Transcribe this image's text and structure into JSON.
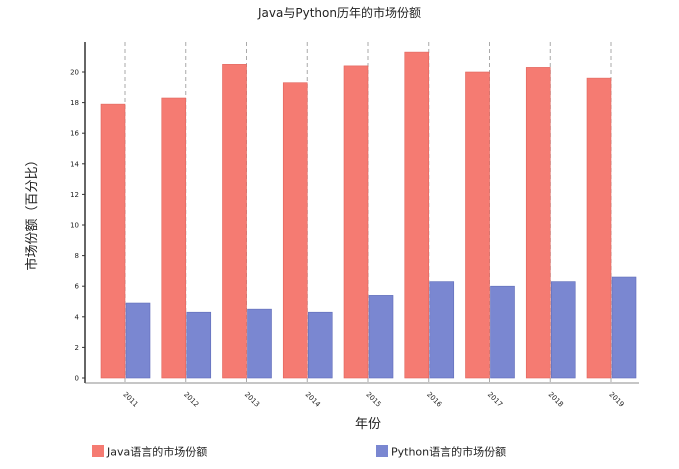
{
  "chart_data": {
    "type": "bar",
    "title": "Java与Python历年的市场份额",
    "xlabel": "年份",
    "ylabel": "市场份额（百分比）",
    "categories": [
      "2011",
      "2012",
      "2013",
      "2014",
      "2015",
      "2016",
      "2017",
      "2018",
      "2019"
    ],
    "series": [
      {
        "name": "Java语言的市场份额",
        "color": "#f57b72",
        "values": [
          17.9,
          18.3,
          20.5,
          19.3,
          20.4,
          21.3,
          20.0,
          20.3,
          19.6
        ]
      },
      {
        "name": "Python语言的市场份额",
        "color": "#7a87d1",
        "values": [
          4.9,
          4.3,
          4.5,
          4.3,
          5.4,
          6.3,
          6.0,
          6.3,
          6.6
        ]
      }
    ],
    "ylim": [
      0,
      22
    ],
    "yticks": [
      0,
      2,
      4,
      6,
      8,
      10,
      12,
      14,
      16,
      18,
      20
    ],
    "grid": "vertical-dashed",
    "legend_position": "bottom"
  }
}
